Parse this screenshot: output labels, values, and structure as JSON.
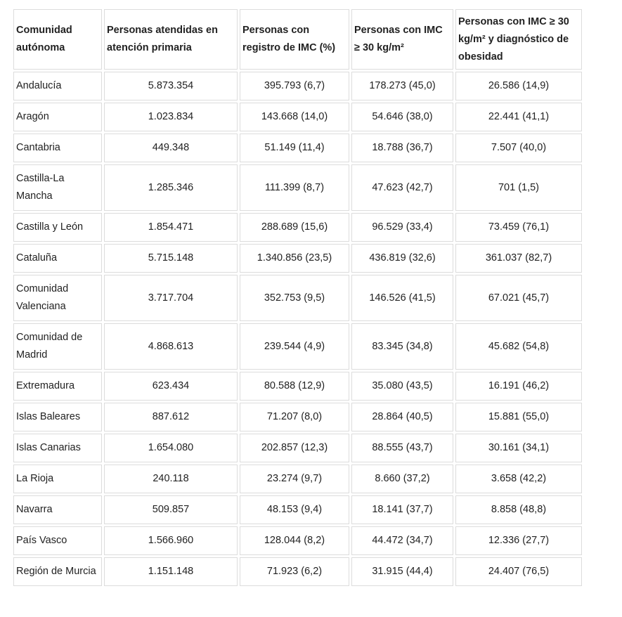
{
  "table": {
    "headers": [
      "Comunidad autónoma",
      "Personas atendidas en atención primaria",
      "Personas con registro de IMC (%)",
      "Personas con IMC ≥ 30 kg/m²",
      "Personas con IMC ≥ 30 kg/m² y diagnóstico de obesidad"
    ],
    "rows": [
      [
        "Andalucía",
        "5.873.354",
        "395.793 (6,7)",
        "178.273 (45,0)",
        "26.586 (14,9)"
      ],
      [
        "Aragón",
        "1.023.834",
        "143.668 (14,0)",
        "54.646 (38,0)",
        "22.441 (41,1)"
      ],
      [
        "Cantabria",
        "449.348",
        "51.149 (11,4)",
        "18.788 (36,7)",
        "7.507 (40,0)"
      ],
      [
        "Castilla-La Mancha",
        "1.285.346",
        "111.399 (8,7)",
        "47.623 (42,7)",
        "701 (1,5)"
      ],
      [
        "Castilla y León",
        "1.854.471",
        "288.689 (15,6)",
        "96.529 (33,4)",
        "73.459 (76,1)"
      ],
      [
        "Cataluña",
        "5.715.148",
        "1.340.856 (23,5)",
        "436.819 (32,6)",
        "361.037 (82,7)"
      ],
      [
        "Comunidad Valenciana",
        "3.717.704",
        "352.753 (9,5)",
        "146.526 (41,5)",
        "67.021 (45,7)"
      ],
      [
        "Comunidad de Madrid",
        "4.868.613",
        "239.544 (4,9)",
        "83.345 (34,8)",
        "45.682 (54,8)"
      ],
      [
        "Extremadura",
        "623.434",
        "80.588 (12,9)",
        "35.080 (43,5)",
        "16.191 (46,2)"
      ],
      [
        "Islas Baleares",
        "887.612",
        "71.207 (8,0)",
        "28.864 (40,5)",
        "15.881 (55,0)"
      ],
      [
        "Islas Canarias",
        "1.654.080",
        "202.857 (12,3)",
        "88.555 (43,7)",
        "30.161 (34,1)"
      ],
      [
        "La Rioja",
        "240.118",
        "23.274 (9,7)",
        "8.660 (37,2)",
        "3.658 (42,2)"
      ],
      [
        "Navarra",
        "509.857",
        "48.153 (9,4)",
        "18.141 (37,7)",
        "8.858 (48,8)"
      ],
      [
        "País Vasco",
        "1.566.960",
        "128.044 (8,2)",
        "44.472 (34,7)",
        "12.336 (27,7)"
      ],
      [
        "Región de Murcia",
        "1.151.148",
        "71.923 (6,2)",
        "31.915 (44,4)",
        "24.407 (76,5)"
      ]
    ]
  }
}
